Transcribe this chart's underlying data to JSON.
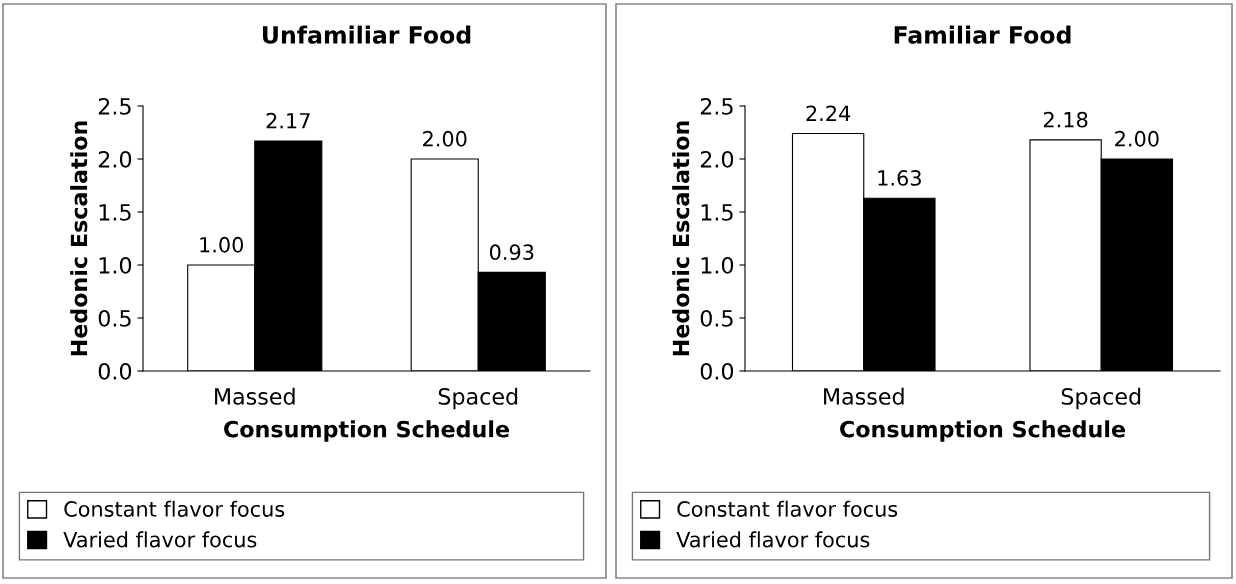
{
  "chart_data": [
    {
      "type": "bar",
      "title": "Unfamiliar Food",
      "xlabel": "Consumption Schedule",
      "ylabel": "Hedonic Escalation",
      "categories": [
        "Massed",
        "Spaced"
      ],
      "series": [
        {
          "name": "Constant flavor focus",
          "color": "#ffffff",
          "values": [
            1.0,
            2.0
          ],
          "value_labels": [
            "1.00",
            "2.00"
          ]
        },
        {
          "name": "Varied flavor focus",
          "color": "#000000",
          "values": [
            2.17,
            0.93
          ],
          "value_labels": [
            "2.17",
            "0.93"
          ]
        }
      ],
      "ylim": [
        0,
        2.5
      ],
      "yticks": [
        {
          "value": 0,
          "label": "0.0"
        },
        0.5,
        {
          "value": 1,
          "label": "1.0"
        },
        1.5,
        {
          "value": 2,
          "label": "2.0"
        },
        2.5
      ],
      "grid": false,
      "legend": "bottom"
    },
    {
      "type": "bar",
      "title": "Familiar Food",
      "xlabel": "Consumption Schedule",
      "ylabel": "Hedonic Escalation",
      "categories": [
        "Massed",
        "Spaced"
      ],
      "series": [
        {
          "name": "Constant flavor focus",
          "color": "#ffffff",
          "values": [
            2.24,
            2.18
          ],
          "value_labels": [
            "2.24",
            "2.18"
          ]
        },
        {
          "name": "Varied flavor focus",
          "color": "#000000",
          "values": [
            1.63,
            2.0
          ],
          "value_labels": [
            "1.63",
            "2.00"
          ]
        }
      ],
      "ylim": [
        0,
        2.5
      ],
      "yticks": [
        {
          "value": 0,
          "label": "0.0"
        },
        0.5,
        {
          "value": 1,
          "label": "1.0"
        },
        1.5,
        {
          "value": 2,
          "label": "2.0"
        },
        2.5
      ],
      "grid": false,
      "legend": "bottom"
    }
  ]
}
